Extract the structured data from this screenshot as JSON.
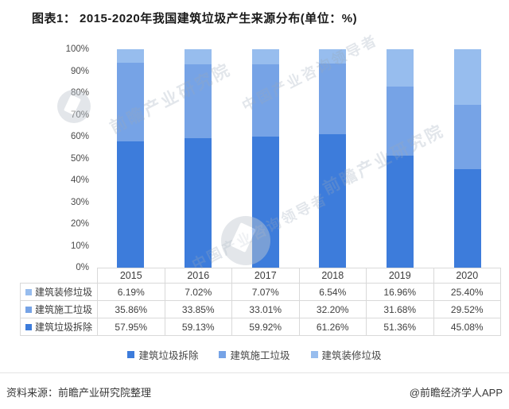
{
  "title": "图表1： 2015-2020年我国建筑垃圾产生来源分布(单位：%)",
  "chart_data": {
    "type": "bar",
    "stacked": true,
    "title": "图表1： 2015-2020年我国建筑垃圾产生来源分布(单位：%)",
    "categories": [
      "2015",
      "2016",
      "2017",
      "2018",
      "2019",
      "2020"
    ],
    "series": [
      {
        "name": "建筑垃圾拆除",
        "color": "#3d7cdb",
        "values": [
          57.95,
          59.13,
          59.92,
          61.26,
          51.36,
          45.08
        ]
      },
      {
        "name": "建筑施工垃圾",
        "color": "#76a3e6",
        "values": [
          35.86,
          33.85,
          33.01,
          32.2,
          31.68,
          29.52
        ]
      },
      {
        "name": "建筑装修垃圾",
        "color": "#97bdee",
        "values": [
          6.19,
          7.02,
          7.07,
          6.54,
          16.96,
          25.4
        ]
      }
    ],
    "xlabel": "",
    "ylabel": "",
    "ylim": [
      0,
      100
    ],
    "yticks": [
      "100%",
      "90%",
      "80%",
      "70%",
      "60%",
      "50%",
      "40%",
      "30%",
      "20%",
      "10%",
      "0%"
    ],
    "grid": false,
    "legend_position": "bottom"
  },
  "table": {
    "header": [
      "2015",
      "2016",
      "2017",
      "2018",
      "2019",
      "2020"
    ],
    "rows": [
      {
        "label": "建筑装修垃圾",
        "color": "#97bdee",
        "values": [
          "6.19%",
          "7.02%",
          "7.07%",
          "6.54%",
          "16.96%",
          "25.40%"
        ]
      },
      {
        "label": "建筑施工垃圾",
        "color": "#76a3e6",
        "values": [
          "35.86%",
          "33.85%",
          "33.01%",
          "32.20%",
          "31.68%",
          "29.52%"
        ]
      },
      {
        "label": "建筑垃圾拆除",
        "color": "#3d7cdb",
        "values": [
          "57.95%",
          "59.13%",
          "59.92%",
          "61.26%",
          "51.36%",
          "45.08%"
        ]
      }
    ]
  },
  "legend": [
    {
      "label": "建筑垃圾拆除",
      "color": "#3d7cdb"
    },
    {
      "label": "建筑施工垃圾",
      "color": "#76a3e6"
    },
    {
      "label": "建筑装修垃圾",
      "color": "#97bdee"
    }
  ],
  "watermark": {
    "text": "前瞻产业研究院",
    "subtext": "中国产业咨询领导者"
  },
  "footer": {
    "source": "资料来源：前瞻产业研究院整理",
    "credit": "@前瞻经济学人APP"
  }
}
